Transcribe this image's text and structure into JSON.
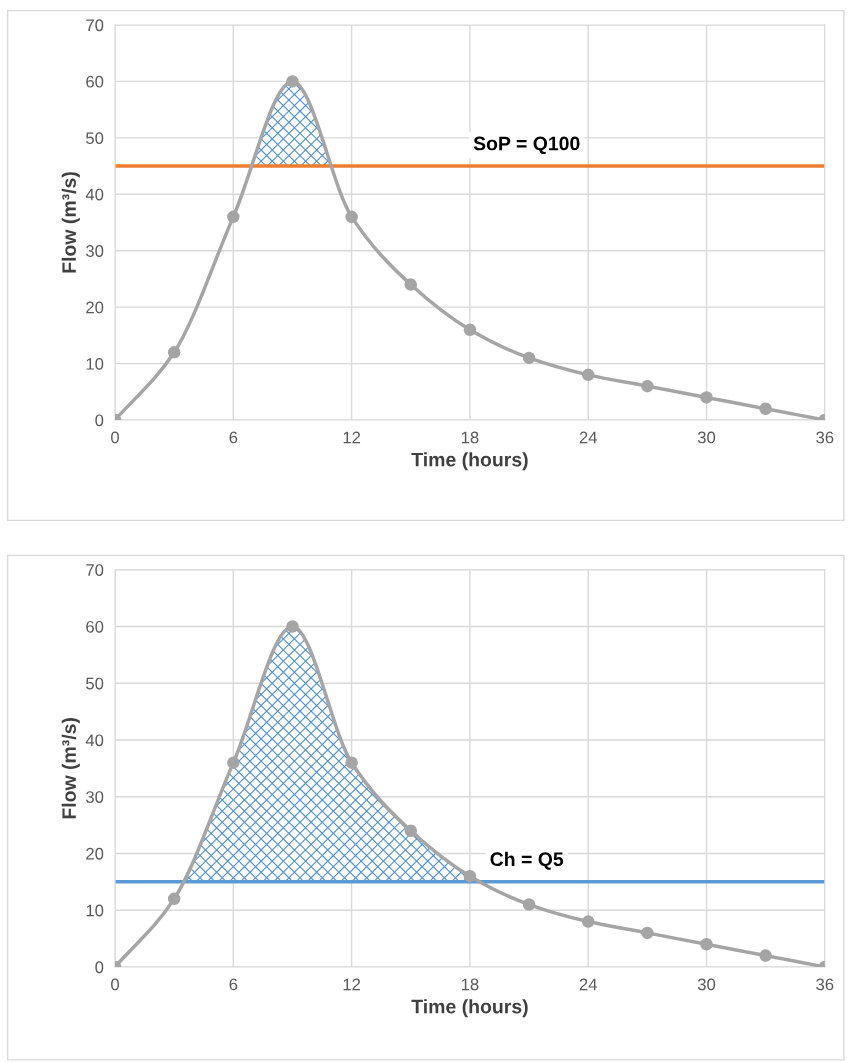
{
  "chart_data": [
    {
      "type": "line",
      "xlabel": "Time (hours)",
      "ylabel": "Flow (m³/s)",
      "xlim": [
        0,
        36
      ],
      "xticks": [
        0,
        6,
        12,
        18,
        24,
        30,
        36
      ],
      "ylim": [
        0,
        70
      ],
      "yticks": [
        0,
        10,
        20,
        30,
        40,
        50,
        60,
        70
      ],
      "grid": true,
      "marker": "circle",
      "line_style": "solid",
      "series": [
        {
          "color": "#a5a5a5",
          "x": [
            0,
            3,
            6,
            9,
            12,
            15,
            18,
            21,
            24,
            27,
            30,
            33,
            36
          ],
          "values": [
            0,
            12,
            36,
            60,
            36,
            24,
            16,
            11,
            8,
            6,
            4,
            2,
            0
          ]
        }
      ],
      "ref_lines": [
        {
          "axis": "y",
          "value": 45,
          "label": "SoP = Q100",
          "color": "#ed7d31"
        }
      ]
    },
    {
      "type": "line",
      "xlabel": "Time (hours)",
      "ylabel": "Flow (m³/s)",
      "xlim": [
        0,
        36
      ],
      "xticks": [
        0,
        6,
        12,
        18,
        24,
        30,
        36
      ],
      "ylim": [
        0,
        70
      ],
      "yticks": [
        0,
        10,
        20,
        30,
        40,
        50,
        60,
        70
      ],
      "grid": true,
      "marker": "circle",
      "line_style": "solid",
      "series": [
        {
          "color": "#a5a5a5",
          "x": [
            0,
            3,
            6,
            9,
            12,
            15,
            18,
            21,
            24,
            27,
            30,
            33,
            36
          ],
          "values": [
            0,
            12,
            36,
            60,
            36,
            24,
            16,
            11,
            8,
            6,
            4,
            2,
            0
          ]
        }
      ],
      "ref_lines": [
        {
          "axis": "y",
          "value": 15,
          "label": "Ch = Q5",
          "color": "#5b9bd5"
        }
      ]
    }
  ]
}
